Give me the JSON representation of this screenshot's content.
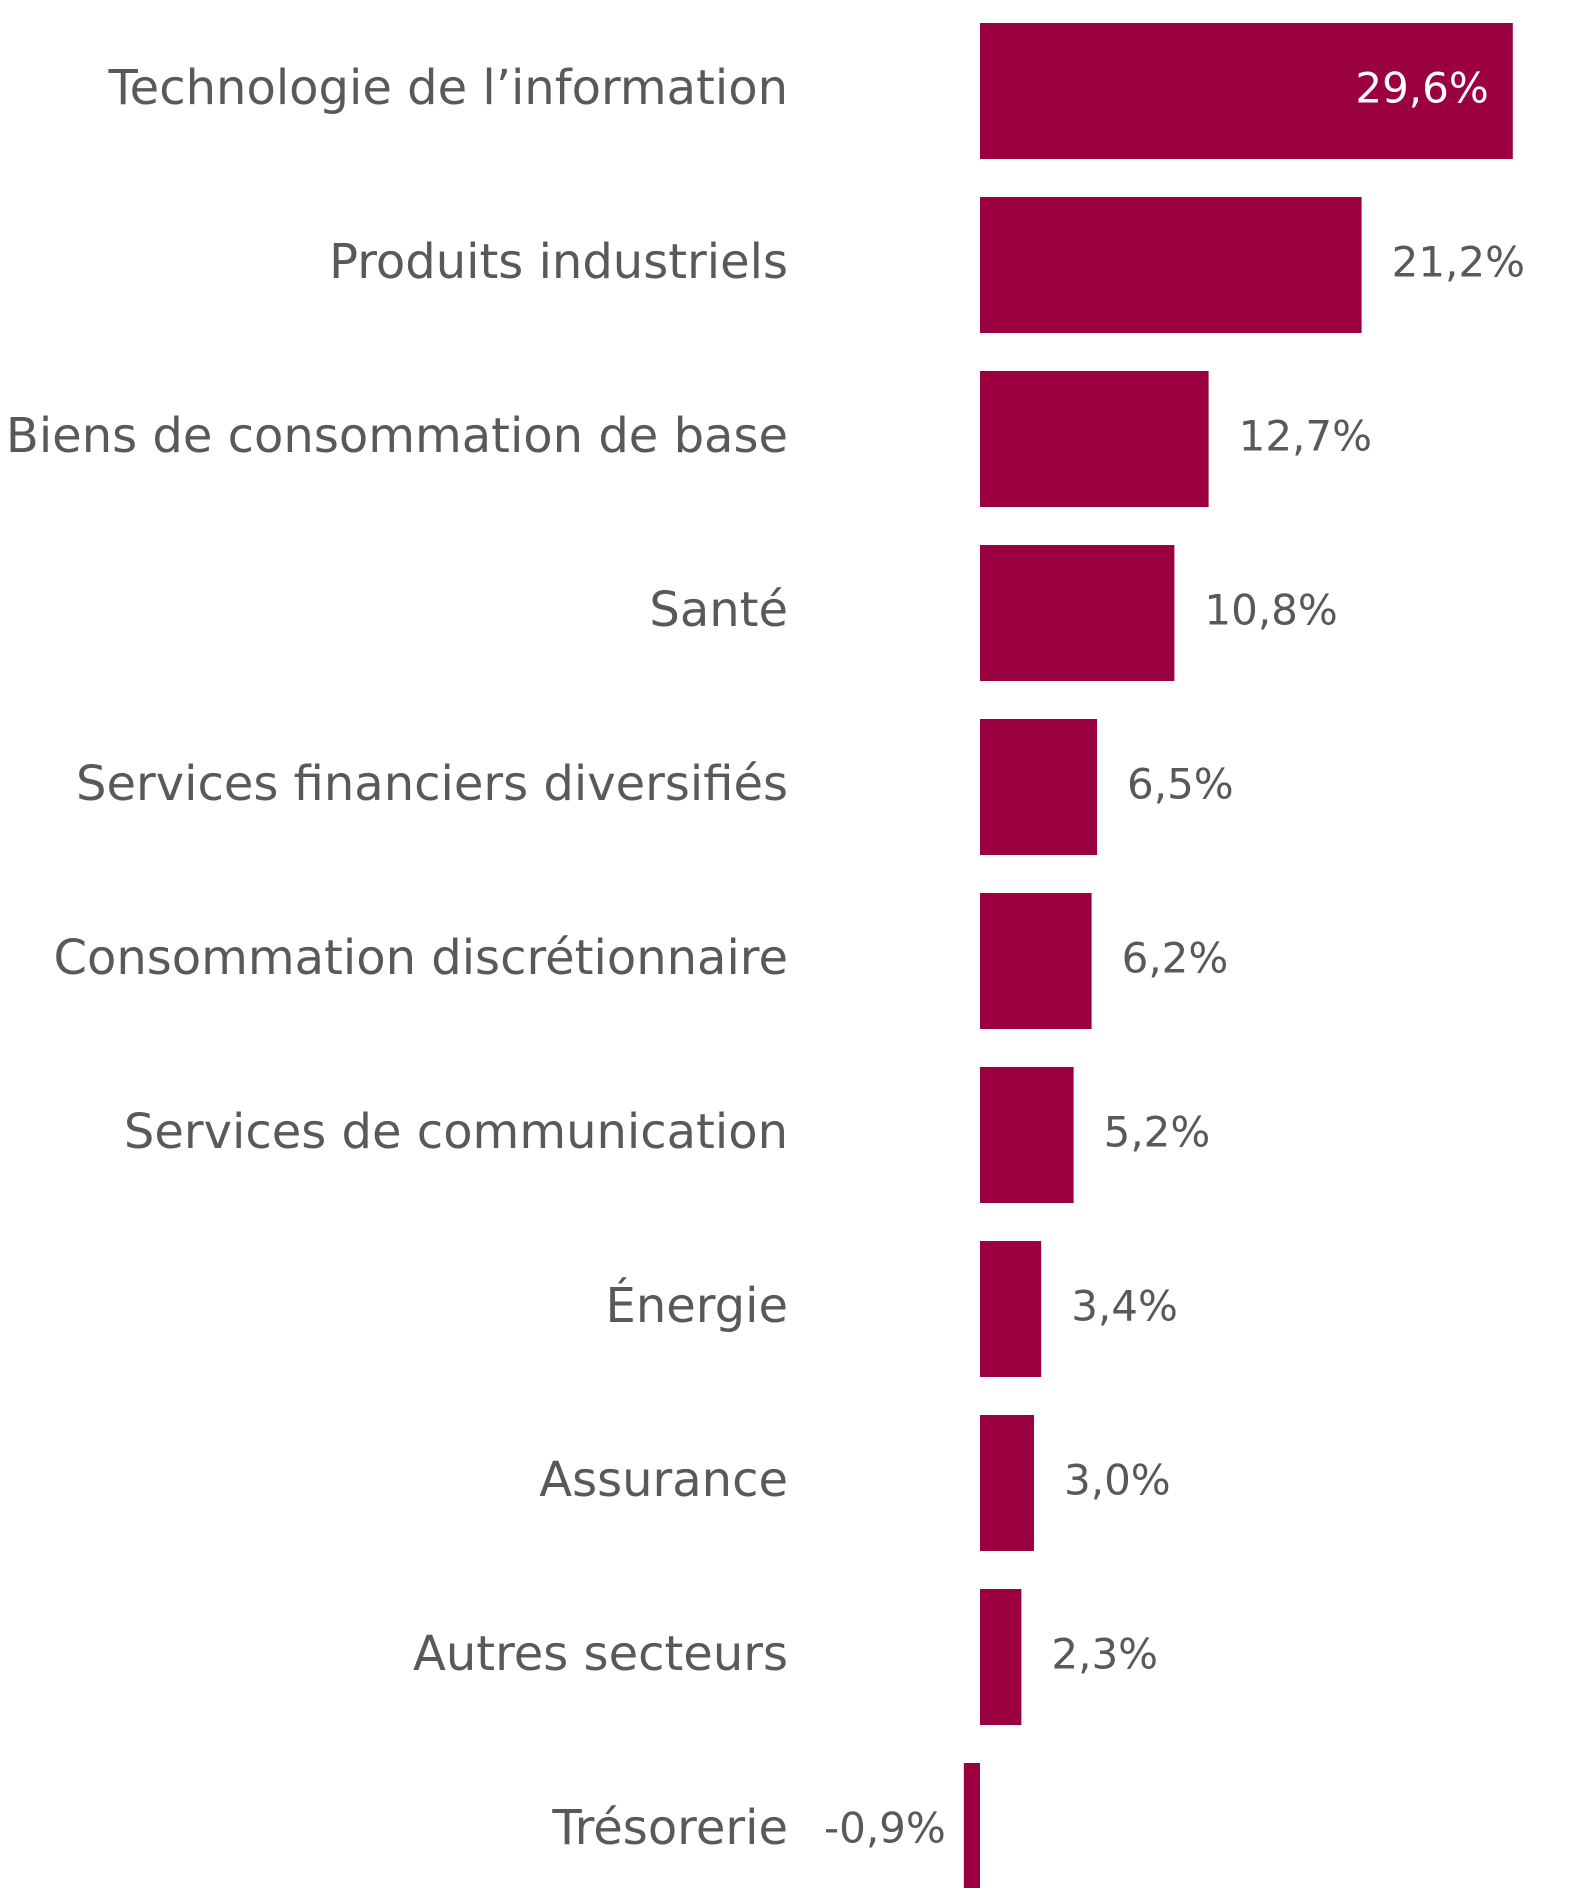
{
  "chart_data": {
    "type": "bar",
    "orientation": "horizontal",
    "categories": [
      "Technologie de l’information",
      "Produits industriels",
      "Biens de consommation de base",
      "Santé",
      "Services financiers diversifiés",
      "Consommation discrétionnaire",
      "Services de communication",
      "Énergie",
      "Assurance",
      "Autres secteurs",
      "Trésorerie"
    ],
    "values": [
      29.6,
      21.2,
      12.7,
      10.8,
      6.5,
      6.2,
      5.2,
      3.4,
      3.0,
      2.3,
      -0.9
    ],
    "value_labels": [
      "29,6%",
      "21,2%",
      "12,7%",
      "10,8%",
      "6,5%",
      "6,2%",
      "5,2%",
      "3,4%",
      "3,0%",
      "2,3%",
      "-0,9%"
    ],
    "title": "",
    "xlabel": "",
    "ylabel": "",
    "xlim": [
      -0.9,
      29.6
    ],
    "grid": false,
    "legend": "none",
    "colors": {
      "bar": "#9b0040",
      "category_text": "#595959",
      "value_text": "#595959",
      "inside_value_text": "#ffffff"
    }
  }
}
